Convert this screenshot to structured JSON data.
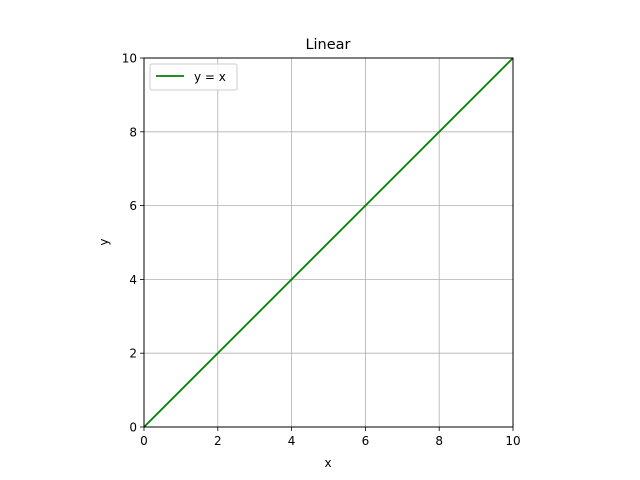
{
  "chart_data": {
    "type": "line",
    "title": "Linear",
    "xlabel": "x",
    "ylabel": "y",
    "xlim": [
      0,
      10
    ],
    "ylim": [
      0,
      10
    ],
    "x_ticks": [
      0,
      2,
      4,
      6,
      8,
      10
    ],
    "y_ticks": [
      0,
      2,
      4,
      6,
      8,
      10
    ],
    "grid": true,
    "legend_position": "top-left",
    "series": [
      {
        "name": "y = x",
        "color": "#008000",
        "x": [
          0,
          10
        ],
        "y": [
          0,
          10
        ]
      }
    ]
  }
}
